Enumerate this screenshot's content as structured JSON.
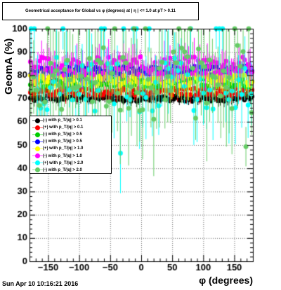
{
  "title": "Geometrical acceptance for Global vs φ (degrees) at | η | <= 1.0 at pT > 0.11",
  "footer": "Sun Apr 10 10:16:21 2016",
  "chart_data": {
    "type": "scatter",
    "xlabel": "φ (degrees)",
    "ylabel": "GeomA (%)",
    "xlim": [
      -180,
      180
    ],
    "ylim": [
      0,
      100
    ],
    "xticks": [
      -150,
      -100,
      -50,
      0,
      50,
      100,
      150
    ],
    "yticks": [
      0,
      10,
      20,
      30,
      40,
      50,
      60,
      70,
      80,
      90,
      100
    ],
    "grid": true,
    "legend_position": "left-middle",
    "series": [
      {
        "name": "(-) with p_T/|q| > 0.1",
        "color": "#000000",
        "mean": 70,
        "spread": 1.2,
        "errbar": 2,
        "points": 120,
        "seed": 1
      },
      {
        "name": "(+) with p_T/|q| > 0.1",
        "color": "#ff0000",
        "mean": 73,
        "spread": 1.6,
        "errbar": 3,
        "points": 120,
        "seed": 2
      },
      {
        "name": "(-) with p_T/|q| > 0.5",
        "color": "#00cc00",
        "mean": 77,
        "spread": 2,
        "errbar": 4,
        "points": 120,
        "seed": 3
      },
      {
        "name": "(-) with p_T/|q| > 0.5",
        "color": "#0000ff",
        "mean": 82,
        "spread": 2,
        "errbar": 3,
        "points": 120,
        "seed": 4
      },
      {
        "name": "(+) with p_T/|q| > 1.0",
        "color": "#ffff00",
        "mean": 78,
        "spread": 2.5,
        "errbar": 5,
        "points": 120,
        "seed": 5
      },
      {
        "name": "(-) with p_T/|q| > 1.0",
        "color": "#ff00ff",
        "mean": 84,
        "spread": 4,
        "errbar": 6,
        "points": 120,
        "seed": 6
      },
      {
        "name": "(+) with p_T/|q| > 2.0",
        "color": "#00ffff",
        "mean": 76,
        "spread": 12,
        "errbar": 14,
        "points": 70,
        "seed": 7
      },
      {
        "name": "(-) with p_T/|q| > 2.0",
        "color": "#66cc66",
        "mean": 77,
        "spread": 16,
        "errbar": 20,
        "points": 80,
        "seed": 8
      }
    ]
  }
}
